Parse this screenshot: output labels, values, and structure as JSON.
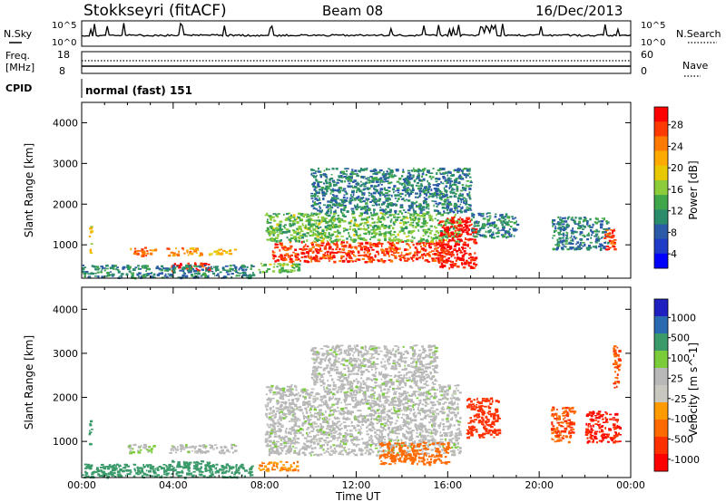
{
  "header": {
    "station": "Stokkseyri (fitACF)",
    "beam": "Beam 08",
    "date": "16/Dec/2013"
  },
  "noise_panel": {
    "left_label": "N.Sky",
    "right_label": "N.Search",
    "left_ticks": [
      "10^5",
      "10^0"
    ],
    "right_ticks": [
      "10^5",
      "10^0"
    ]
  },
  "freq_panel": {
    "left_label_1": "Freq.",
    "left_label_2": "[MHz]",
    "right_label": "Nave",
    "left_ticks": [
      "18",
      "8"
    ],
    "right_ticks": [
      "60",
      "0"
    ]
  },
  "cpid_panel": {
    "label": "CPID",
    "mode": "normal (fast) 151"
  },
  "x_axis": {
    "label": "Time UT",
    "ticks": [
      "00:00",
      "04:00",
      "08:00",
      "12:00",
      "16:00",
      "20:00",
      "00:00"
    ]
  },
  "power_colorbar": {
    "label": "Power [dB]",
    "ticks": [
      "28",
      "24",
      "20",
      "16",
      "12",
      "8",
      "4"
    ],
    "colors": [
      "#ff0000",
      "#ff3a00",
      "#ff7a00",
      "#ffaa00",
      "#e8c800",
      "#8ccc3a",
      "#3fa64a",
      "#2a8c6a",
      "#2a5aa8",
      "#1e3cc8",
      "#0000ff"
    ]
  },
  "velocity_colorbar": {
    "label": "Velocity [m s^-1]",
    "ticks": [
      "1000",
      "500",
      "100",
      "25",
      "-25",
      "-100",
      "-500",
      "-1000"
    ],
    "colors": [
      "#2020c0",
      "#2a6ab0",
      "#3a9a6a",
      "#7acc3a",
      "#b8b8b8",
      "#c8c8c0",
      "#ff9a00",
      "#ff6a00",
      "#ff3000",
      "#ff0000"
    ]
  },
  "chart_data": [
    {
      "type": "heatmap",
      "name": "power",
      "ylabel": "Slant Range [km]",
      "xlabel": "",
      "xlim": [
        0,
        24
      ],
      "ylim": [
        180,
        4500
      ],
      "yticks": [
        1000,
        2000,
        3000,
        4000
      ],
      "colorbar": "Power [dB]",
      "regions": [
        {
          "t": [
            0.3,
            0.4
          ],
          "r": [
            800,
            1600
          ],
          "db": 18
        },
        {
          "t": [
            2.0,
            3.2
          ],
          "r": [
            750,
            950
          ],
          "db": 24
        },
        {
          "t": [
            3.7,
            5.2
          ],
          "r": [
            750,
            950
          ],
          "db": 22
        },
        {
          "t": [
            5.5,
            6.7
          ],
          "r": [
            780,
            920
          ],
          "db": 20
        },
        {
          "t": [
            3.9,
            5.6
          ],
          "r": [
            380,
            580
          ],
          "db": 26
        },
        {
          "t": [
            0.0,
            7.5
          ],
          "r": [
            200,
            520
          ],
          "db": 10
        },
        {
          "t": [
            7.7,
            9.5
          ],
          "r": [
            350,
            560
          ],
          "db": 14
        },
        {
          "t": [
            8.3,
            16.0
          ],
          "r": [
            600,
            1100
          ],
          "db": 26
        },
        {
          "t": [
            8.0,
            16.5
          ],
          "r": [
            1100,
            1800
          ],
          "db": 14
        },
        {
          "t": [
            10.0,
            17.0
          ],
          "r": [
            1800,
            2900
          ],
          "db": 10
        },
        {
          "t": [
            15.5,
            17.2
          ],
          "r": [
            450,
            1700
          ],
          "db": 28
        },
        {
          "t": [
            17.0,
            19.0
          ],
          "r": [
            1200,
            1800
          ],
          "db": 10
        },
        {
          "t": [
            20.5,
            23.0
          ],
          "r": [
            900,
            1700
          ],
          "db": 10
        },
        {
          "t": [
            22.8,
            23.3
          ],
          "r": [
            900,
            1400
          ],
          "db": 26
        }
      ]
    },
    {
      "type": "heatmap",
      "name": "velocity",
      "ylabel": "Slant Range [km]",
      "xlabel": "Time UT",
      "xlim": [
        0,
        24
      ],
      "ylim": [
        180,
        4500
      ],
      "yticks": [
        1000,
        2000,
        3000,
        4000
      ],
      "colorbar": "Velocity [m s^-1]",
      "regions": [
        {
          "t": [
            0.3,
            0.4
          ],
          "r": [
            900,
            1600
          ],
          "v": 100
        },
        {
          "t": [
            2.0,
            3.2
          ],
          "r": [
            750,
            950
          ],
          "v": 25
        },
        {
          "t": [
            3.7,
            6.7
          ],
          "r": [
            750,
            950
          ],
          "v": 0
        },
        {
          "t": [
            3.9,
            5.6
          ],
          "r": [
            380,
            580
          ],
          "v": 150
        },
        {
          "t": [
            0.0,
            7.5
          ],
          "r": [
            200,
            500
          ],
          "v": 100
        },
        {
          "t": [
            7.7,
            9.5
          ],
          "r": [
            350,
            560
          ],
          "v": -300
        },
        {
          "t": [
            8.0,
            16.5
          ],
          "r": [
            700,
            2300
          ],
          "v": 0
        },
        {
          "t": [
            10.0,
            15.5
          ],
          "r": [
            2300,
            3200
          ],
          "v": 0
        },
        {
          "t": [
            13.0,
            16.0
          ],
          "r": [
            500,
            1000
          ],
          "v": -400
        },
        {
          "t": [
            16.8,
            18.2
          ],
          "r": [
            1100,
            2000
          ],
          "v": -600
        },
        {
          "t": [
            20.5,
            21.5
          ],
          "r": [
            1000,
            1800
          ],
          "v": -500
        },
        {
          "t": [
            22.0,
            23.5
          ],
          "r": [
            1000,
            1700
          ],
          "v": -800
        },
        {
          "t": [
            23.2,
            23.5
          ],
          "r": [
            2200,
            3200
          ],
          "v": -500
        }
      ]
    }
  ]
}
